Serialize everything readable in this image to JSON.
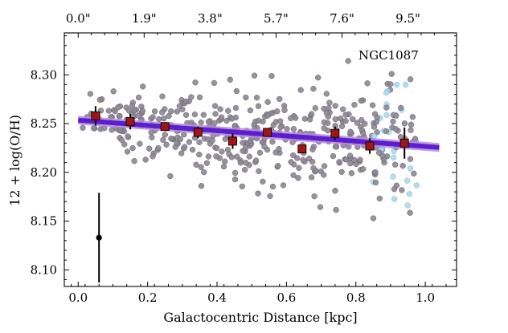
{
  "chart_data": {
    "type": "scatter",
    "annotation": "NGC1087",
    "xlabel": "Galactocentric Distance [kpc]",
    "ylabel": "12 + log(O/H)",
    "xlim": [
      -0.04,
      1.09
    ],
    "ylim": [
      8.083,
      8.343
    ],
    "xticks": [
      0.0,
      0.2,
      0.4,
      0.6,
      0.8,
      1.0
    ],
    "xtick_labels": [
      "0.0",
      "0.2",
      "0.4",
      "0.6",
      "0.8",
      "1.0"
    ],
    "yticks": [
      8.1,
      8.15,
      8.2,
      8.25,
      8.3
    ],
    "ytick_labels": [
      "8.10",
      "8.15",
      "8.20",
      "8.25",
      "8.30"
    ],
    "top_xticks": [
      0.0,
      0.19,
      0.38,
      0.57,
      0.76,
      0.95
    ],
    "top_xtick_labels": [
      "0.0\"",
      "1.9\"",
      "3.8\"",
      "5.7\"",
      "7.6\"",
      "9.5\""
    ],
    "grid": false,
    "fit_line": {
      "x": [
        0.0,
        1.04
      ],
      "y": [
        8.2535,
        8.2255
      ],
      "band_half_width": 0.0045,
      "color": "#5a1fd1",
      "band_color": "#b88ad8"
    },
    "binned_medians": {
      "x": [
        0.05,
        0.15,
        0.25,
        0.345,
        0.445,
        0.545,
        0.645,
        0.74,
        0.84,
        0.94
      ],
      "y": [
        8.258,
        8.252,
        8.247,
        8.241,
        8.232,
        8.241,
        8.224,
        8.24,
        8.227,
        8.23
      ],
      "yerr": [
        0.01,
        0.008,
        0.004,
        0.006,
        0.008,
        0.003,
        0.004,
        0.007,
        0.008,
        0.016
      ],
      "color": "#a31515"
    },
    "typical_error": {
      "x": 0.06,
      "y": 8.133,
      "yerr": 0.046
    },
    "spaxels_color": "#8e8996",
    "outer_spaxels_color": "#a9dcf3"
  }
}
